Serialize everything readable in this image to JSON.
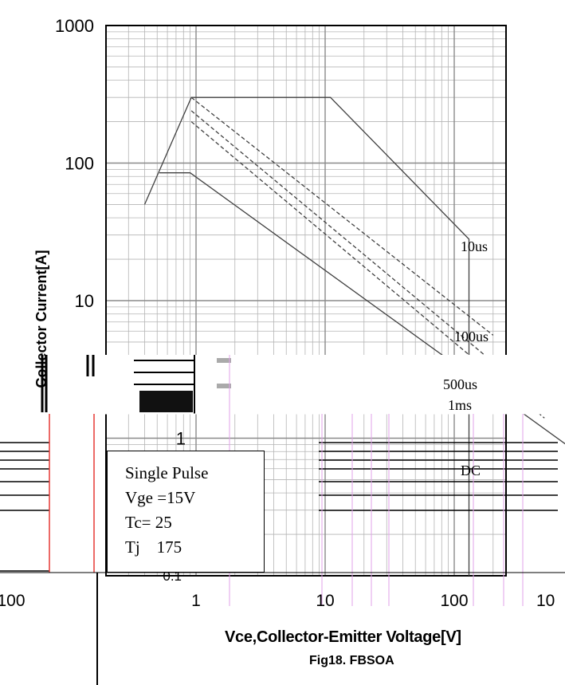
{
  "chart_data": {
    "type": "line",
    "title": "Fig18. FBSOA",
    "xlabel": "Vce,Collector-Emitter Voltage[V]",
    "ylabel": "Collector Current[A]",
    "x_scale": "log",
    "y_scale": "log",
    "xlim": [
      0.1,
      1000
    ],
    "ylim": [
      0.1,
      1000
    ],
    "y_tick_labels": [
      "1000",
      "100",
      "10",
      "1",
      "0.1"
    ],
    "x_tick_labels": [
      "100",
      "1",
      "10",
      "100",
      "10"
    ],
    "grid": true,
    "series": [
      {
        "name": "10us",
        "style": "solid",
        "x": [
          0.4,
          0.92,
          11,
          130,
          130
        ],
        "y": [
          50,
          300,
          300,
          28,
          0.1
        ]
      },
      {
        "name": "100us",
        "style": "dashed",
        "x": [
          0.92,
          200
        ],
        "y": [
          300,
          5.6
        ]
      },
      {
        "name": "500us",
        "style": "dashed",
        "x": [
          0.92,
          300
        ],
        "y": [
          240,
          2.6
        ]
      },
      {
        "name": "1ms",
        "style": "dashed",
        "x": [
          0.92,
          500
        ],
        "y": [
          200,
          1.4
        ]
      },
      {
        "name": "DC",
        "style": "solid",
        "x": [
          0.52,
          0.9,
          800
        ],
        "y": [
          85,
          85,
          0.85
        ]
      }
    ],
    "series_labels": [
      "10us",
      "100us",
      "500us",
      "1ms",
      "DC"
    ],
    "annotation_box": [
      "Single Pulse",
      "Vge =15V",
      "Tc= 25",
      "Tj    175"
    ]
  },
  "colors": {
    "curve": "#404040",
    "grid": "#a0a0a0",
    "artifact_red": "#e53935",
    "artifact_pink": "#e0a0e8"
  }
}
